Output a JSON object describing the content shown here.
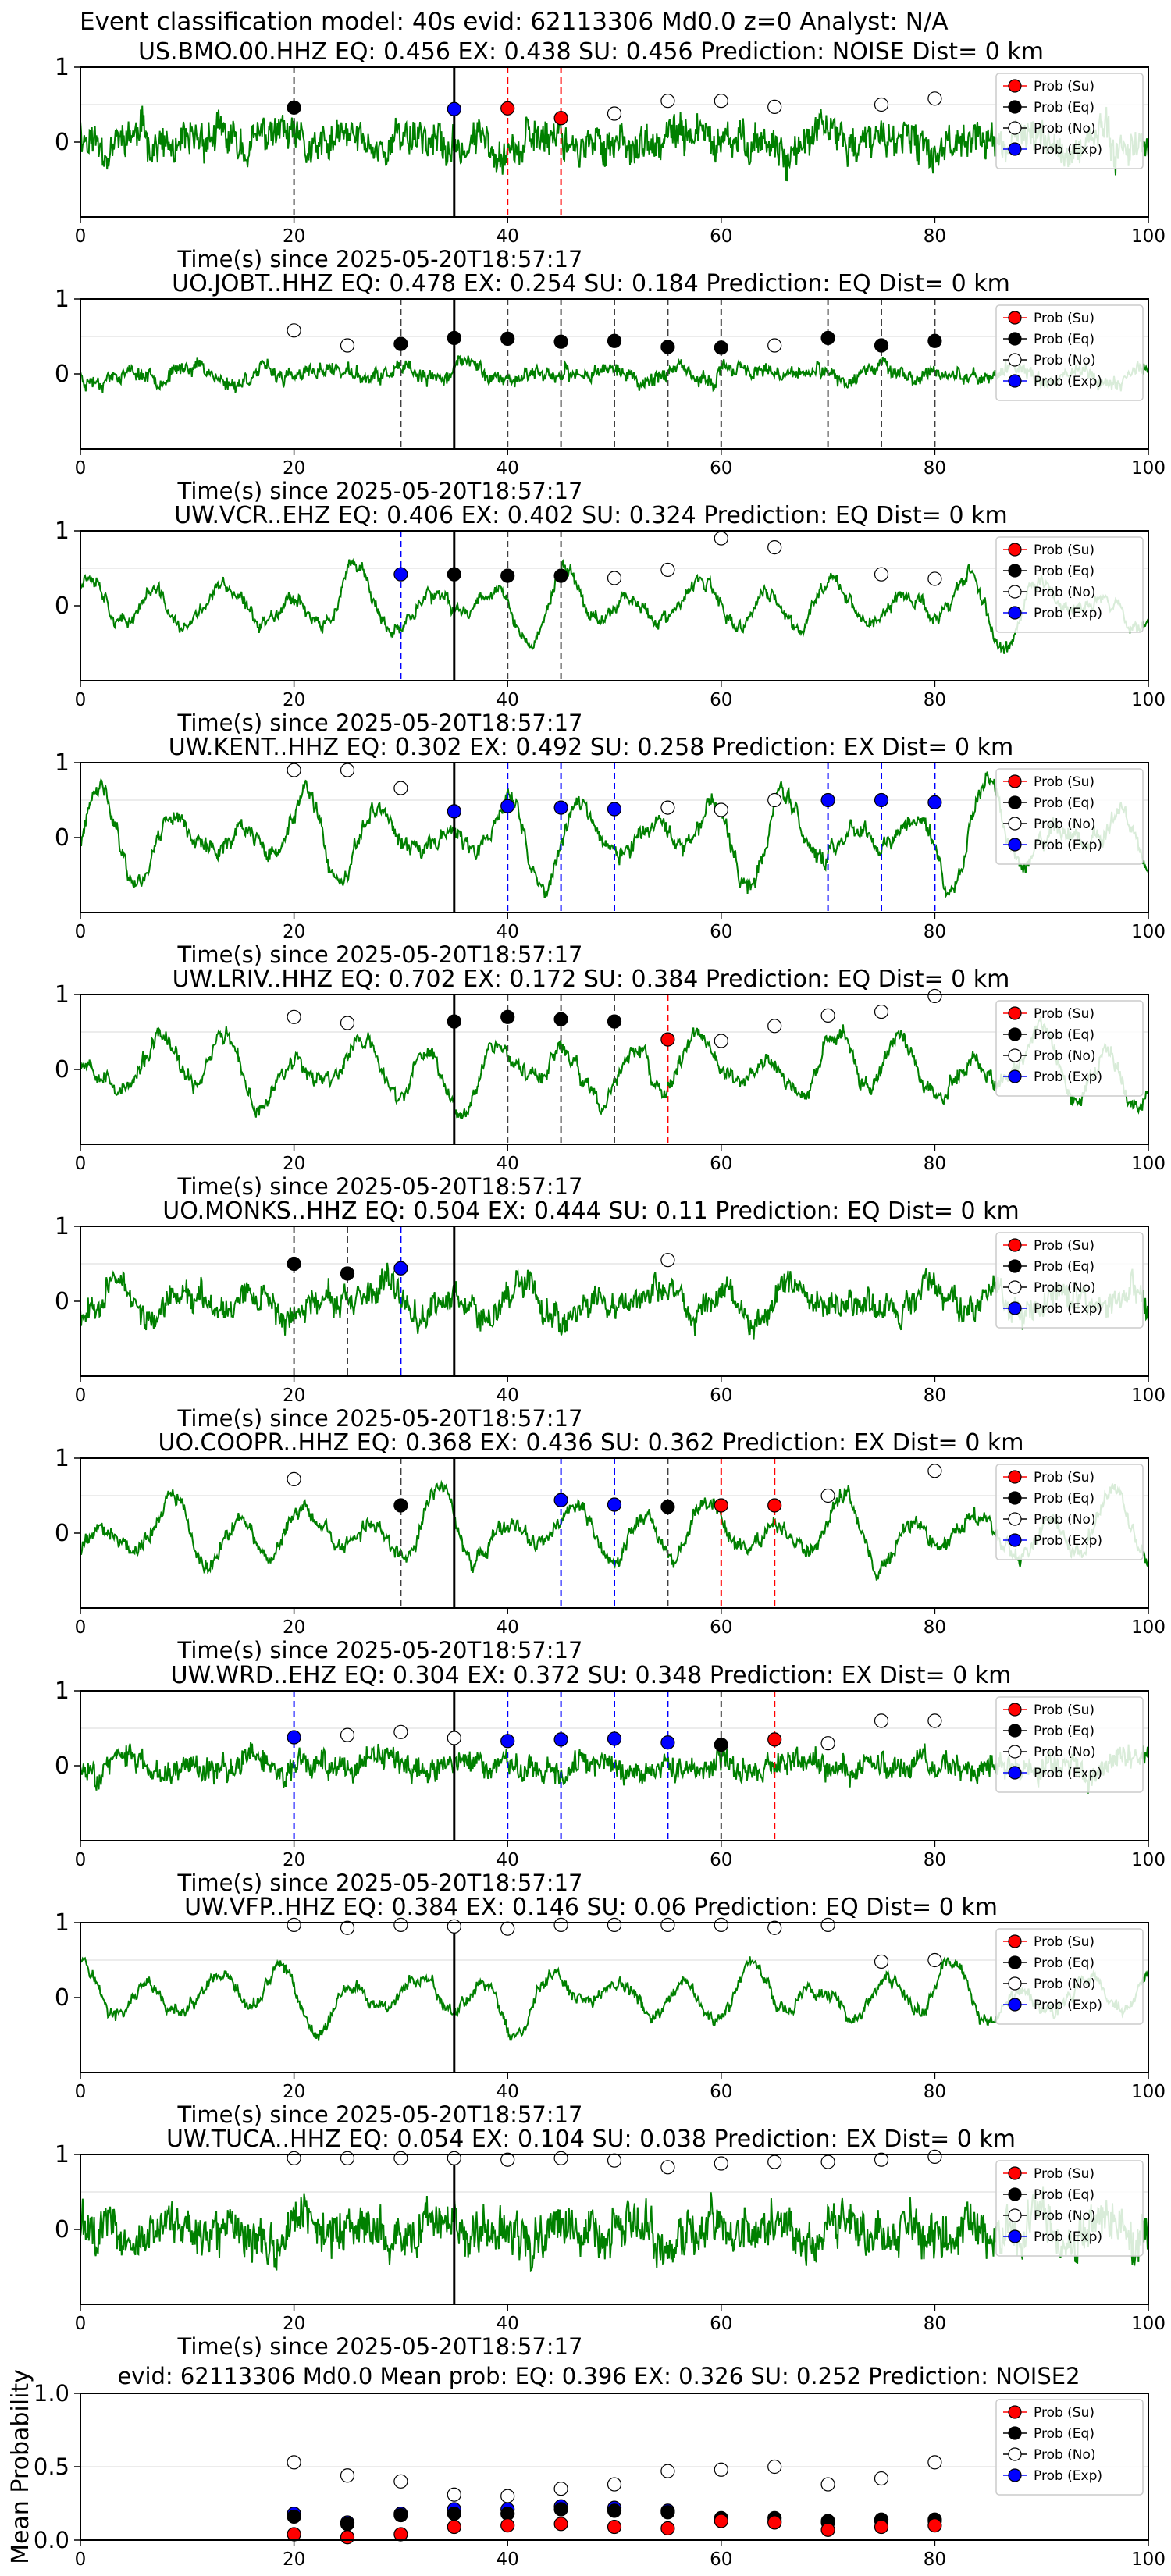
{
  "figure": {
    "suptitle": "Event classification model: 40s evid: 62113306 Md0.0 z=0 Analyst: N/A",
    "xlabel": "Time(s) since 2025-05-20T18:57:17",
    "legend": [
      "Prob (Su)",
      "Prob (Eq)",
      "Prob (No)",
      "Prob (Exp)"
    ],
    "colors": {
      "trace": "#008000",
      "su": "#ff0000",
      "eq": "#000000",
      "no": "#ffffff",
      "exp": "#0000ff",
      "onset": "#000000",
      "gridline": "#d8d8d8"
    }
  },
  "chart_data": [
    {
      "type": "line",
      "title": "US.BMO.00.HHZ   EQ: 0.456  EX: 0.438  SU: 0.456   Prediction: NOISE    Dist= 0 km",
      "style": "noisy",
      "amp": 0.42,
      "seed": 11,
      "onset": 35,
      "xlim": [
        0,
        100
      ],
      "ylim": [
        -1,
        1
      ],
      "xticks": [
        0,
        20,
        40,
        60,
        80,
        100
      ],
      "yticks": [
        0,
        1
      ],
      "points": [
        {
          "t": 20,
          "cls": "eq",
          "p": 0.46
        },
        {
          "t": 35,
          "cls": "exp",
          "p": 0.44
        },
        {
          "t": 40,
          "cls": "su",
          "p": 0.45
        },
        {
          "t": 45,
          "cls": "su",
          "p": 0.32
        },
        {
          "t": 50,
          "cls": "no",
          "p": 0.38
        },
        {
          "t": 55,
          "cls": "no",
          "p": 0.55
        },
        {
          "t": 60,
          "cls": "no",
          "p": 0.55
        },
        {
          "t": 65,
          "cls": "no",
          "p": 0.47
        },
        {
          "t": 75,
          "cls": "no",
          "p": 0.5
        },
        {
          "t": 80,
          "cls": "no",
          "p": 0.58
        }
      ]
    },
    {
      "type": "line",
      "title": "UO.JOBT..HHZ   EQ: 0.478  EX: 0.254  SU: 0.184   Prediction: EQ    Dist= 0 km",
      "style": "mixed",
      "amp": 0.3,
      "seed": 23,
      "onset": 35,
      "xlim": [
        0,
        100
      ],
      "ylim": [
        -1,
        1
      ],
      "xticks": [
        0,
        20,
        40,
        60,
        80,
        100
      ],
      "yticks": [
        0,
        1
      ],
      "points": [
        {
          "t": 20,
          "cls": "no",
          "p": 0.58
        },
        {
          "t": 25,
          "cls": "no",
          "p": 0.38
        },
        {
          "t": 30,
          "cls": "eq",
          "p": 0.4
        },
        {
          "t": 35,
          "cls": "eq",
          "p": 0.48
        },
        {
          "t": 40,
          "cls": "eq",
          "p": 0.47
        },
        {
          "t": 45,
          "cls": "eq",
          "p": 0.43
        },
        {
          "t": 50,
          "cls": "eq",
          "p": 0.44
        },
        {
          "t": 55,
          "cls": "eq",
          "p": 0.36
        },
        {
          "t": 60,
          "cls": "eq",
          "p": 0.35
        },
        {
          "t": 65,
          "cls": "no",
          "p": 0.38
        },
        {
          "t": 70,
          "cls": "eq",
          "p": 0.48
        },
        {
          "t": 75,
          "cls": "eq",
          "p": 0.38
        },
        {
          "t": 80,
          "cls": "eq",
          "p": 0.44
        }
      ]
    },
    {
      "type": "line",
      "title": "UW.VCR..EHZ   EQ: 0.406  EX: 0.402  SU: 0.324   Prediction: EQ    Dist= 0 km",
      "style": "wave",
      "amp": 0.6,
      "seed": 37,
      "onset": 35,
      "xlim": [
        0,
        100
      ],
      "ylim": [
        -1,
        1
      ],
      "xticks": [
        0,
        20,
        40,
        60,
        80,
        100
      ],
      "yticks": [
        0,
        1
      ],
      "points": [
        {
          "t": 30,
          "cls": "exp",
          "p": 0.42
        },
        {
          "t": 35,
          "cls": "eq",
          "p": 0.42
        },
        {
          "t": 40,
          "cls": "eq",
          "p": 0.4
        },
        {
          "t": 45,
          "cls": "eq",
          "p": 0.4
        },
        {
          "t": 50,
          "cls": "no",
          "p": 0.37
        },
        {
          "t": 55,
          "cls": "no",
          "p": 0.48
        },
        {
          "t": 60,
          "cls": "no",
          "p": 0.9
        },
        {
          "t": 65,
          "cls": "no",
          "p": 0.78
        },
        {
          "t": 75,
          "cls": "no",
          "p": 0.42
        },
        {
          "t": 80,
          "cls": "no",
          "p": 0.36
        }
      ]
    },
    {
      "type": "line",
      "title": "UW.KENT..HHZ   EQ: 0.302  EX: 0.492  SU: 0.258   Prediction: EX    Dist= 0 km",
      "style": "wave",
      "amp": 0.75,
      "seed": 41,
      "onset": 35,
      "xlim": [
        0,
        100
      ],
      "ylim": [
        -1,
        1
      ],
      "xticks": [
        0,
        20,
        40,
        60,
        80,
        100
      ],
      "yticks": [
        0,
        1
      ],
      "points": [
        {
          "t": 20,
          "cls": "no",
          "p": 0.9
        },
        {
          "t": 25,
          "cls": "no",
          "p": 0.9
        },
        {
          "t": 30,
          "cls": "no",
          "p": 0.66
        },
        {
          "t": 35,
          "cls": "exp",
          "p": 0.35
        },
        {
          "t": 40,
          "cls": "exp",
          "p": 0.42
        },
        {
          "t": 45,
          "cls": "exp",
          "p": 0.4
        },
        {
          "t": 50,
          "cls": "exp",
          "p": 0.38
        },
        {
          "t": 55,
          "cls": "no",
          "p": 0.4
        },
        {
          "t": 60,
          "cls": "no",
          "p": 0.37
        },
        {
          "t": 65,
          "cls": "no",
          "p": 0.5
        },
        {
          "t": 70,
          "cls": "exp",
          "p": 0.5
        },
        {
          "t": 75,
          "cls": "exp",
          "p": 0.5
        },
        {
          "t": 80,
          "cls": "exp",
          "p": 0.47
        }
      ]
    },
    {
      "type": "line",
      "title": "UW.LRIV..HHZ   EQ: 0.702  EX: 0.172  SU: 0.384   Prediction: EQ    Dist= 0 km",
      "style": "wave",
      "amp": 0.7,
      "seed": 53,
      "onset": 35,
      "xlim": [
        0,
        100
      ],
      "ylim": [
        -1,
        1
      ],
      "xticks": [
        0,
        20,
        40,
        60,
        80,
        100
      ],
      "yticks": [
        0,
        1
      ],
      "points": [
        {
          "t": 20,
          "cls": "no",
          "p": 0.7
        },
        {
          "t": 25,
          "cls": "no",
          "p": 0.62
        },
        {
          "t": 35,
          "cls": "eq",
          "p": 0.64
        },
        {
          "t": 40,
          "cls": "eq",
          "p": 0.7
        },
        {
          "t": 45,
          "cls": "eq",
          "p": 0.67
        },
        {
          "t": 50,
          "cls": "eq",
          "p": 0.64
        },
        {
          "t": 55,
          "cls": "su",
          "p": 0.4
        },
        {
          "t": 60,
          "cls": "no",
          "p": 0.38
        },
        {
          "t": 65,
          "cls": "no",
          "p": 0.58
        },
        {
          "t": 70,
          "cls": "no",
          "p": 0.72
        },
        {
          "t": 75,
          "cls": "no",
          "p": 0.77
        },
        {
          "t": 80,
          "cls": "no",
          "p": 0.98
        }
      ]
    },
    {
      "type": "line",
      "title": "UO.MONKS..HHZ   EQ: 0.504  EX: 0.444  SU: 0.11   Prediction: EQ    Dist= 0 km",
      "style": "mixed",
      "amp": 0.55,
      "seed": 67,
      "onset": 35,
      "xlim": [
        0,
        100
      ],
      "ylim": [
        -1,
        1
      ],
      "xticks": [
        0,
        20,
        40,
        60,
        80,
        100
      ],
      "yticks": [
        0,
        1
      ],
      "points": [
        {
          "t": 20,
          "cls": "eq",
          "p": 0.5
        },
        {
          "t": 25,
          "cls": "eq",
          "p": 0.37
        },
        {
          "t": 30,
          "cls": "exp",
          "p": 0.44
        },
        {
          "t": 55,
          "cls": "no",
          "p": 0.55
        }
      ]
    },
    {
      "type": "line",
      "title": "UO.COOPR..HHZ   EQ: 0.368  EX: 0.436  SU: 0.362   Prediction: EX    Dist= 0 km",
      "style": "wave",
      "amp": 0.65,
      "seed": 79,
      "onset": 35,
      "xlim": [
        0,
        100
      ],
      "ylim": [
        -1,
        1
      ],
      "xticks": [
        0,
        20,
        40,
        60,
        80,
        100
      ],
      "yticks": [
        0,
        1
      ],
      "points": [
        {
          "t": 20,
          "cls": "no",
          "p": 0.72
        },
        {
          "t": 30,
          "cls": "eq",
          "p": 0.37
        },
        {
          "t": 45,
          "cls": "exp",
          "p": 0.44
        },
        {
          "t": 50,
          "cls": "exp",
          "p": 0.38
        },
        {
          "t": 55,
          "cls": "eq",
          "p": 0.35
        },
        {
          "t": 60,
          "cls": "su",
          "p": 0.37
        },
        {
          "t": 65,
          "cls": "su",
          "p": 0.37
        },
        {
          "t": 70,
          "cls": "no",
          "p": 0.5
        },
        {
          "t": 80,
          "cls": "no",
          "p": 0.83
        }
      ]
    },
    {
      "type": "line",
      "title": "UW.WRD..EHZ   EQ: 0.304  EX: 0.372  SU: 0.348   Prediction: EX    Dist= 0 km",
      "style": "noisy",
      "amp": 0.28,
      "seed": 83,
      "onset": 35,
      "xlim": [
        0,
        100
      ],
      "ylim": [
        -1,
        1
      ],
      "xticks": [
        0,
        20,
        40,
        60,
        80,
        100
      ],
      "yticks": [
        0,
        1
      ],
      "points": [
        {
          "t": 20,
          "cls": "exp",
          "p": 0.38
        },
        {
          "t": 25,
          "cls": "no",
          "p": 0.41
        },
        {
          "t": 30,
          "cls": "no",
          "p": 0.45
        },
        {
          "t": 35,
          "cls": "no",
          "p": 0.37
        },
        {
          "t": 40,
          "cls": "exp",
          "p": 0.33
        },
        {
          "t": 45,
          "cls": "exp",
          "p": 0.35
        },
        {
          "t": 50,
          "cls": "exp",
          "p": 0.36
        },
        {
          "t": 55,
          "cls": "exp",
          "p": 0.31
        },
        {
          "t": 60,
          "cls": "eq",
          "p": 0.28
        },
        {
          "t": 65,
          "cls": "su",
          "p": 0.35
        },
        {
          "t": 70,
          "cls": "no",
          "p": 0.3
        },
        {
          "t": 75,
          "cls": "no",
          "p": 0.6
        },
        {
          "t": 80,
          "cls": "no",
          "p": 0.6
        }
      ]
    },
    {
      "type": "line",
      "title": "UW.VFP..HHZ   EQ: 0.384  EX: 0.146  SU: 0.06   Prediction: EQ    Dist= 0 km",
      "style": "wave",
      "amp": 0.55,
      "seed": 97,
      "onset": 35,
      "xlim": [
        0,
        100
      ],
      "ylim": [
        -1,
        1
      ],
      "xticks": [
        0,
        20,
        40,
        60,
        80,
        100
      ],
      "yticks": [
        0,
        1
      ],
      "points": [
        {
          "t": 20,
          "cls": "no",
          "p": 0.97
        },
        {
          "t": 25,
          "cls": "no",
          "p": 0.93
        },
        {
          "t": 30,
          "cls": "no",
          "p": 0.97
        },
        {
          "t": 35,
          "cls": "no",
          "p": 0.95
        },
        {
          "t": 40,
          "cls": "no",
          "p": 0.92
        },
        {
          "t": 45,
          "cls": "no",
          "p": 0.97
        },
        {
          "t": 50,
          "cls": "no",
          "p": 0.97
        },
        {
          "t": 55,
          "cls": "no",
          "p": 0.97
        },
        {
          "t": 60,
          "cls": "no",
          "p": 0.97
        },
        {
          "t": 65,
          "cls": "no",
          "p": 0.93
        },
        {
          "t": 70,
          "cls": "no",
          "p": 0.97
        },
        {
          "t": 75,
          "cls": "no",
          "p": 0.48
        },
        {
          "t": 80,
          "cls": "no",
          "p": 0.5
        }
      ]
    },
    {
      "type": "line",
      "title": "UW.TUCA..HHZ   EQ: 0.054  EX: 0.104  SU: 0.038   Prediction: EX    Dist= 0 km",
      "style": "noisy",
      "amp": 0.5,
      "seed": 101,
      "onset": 35,
      "xlim": [
        0,
        100
      ],
      "ylim": [
        -1,
        1
      ],
      "xticks": [
        0,
        20,
        40,
        60,
        80,
        100
      ],
      "yticks": [
        0,
        1
      ],
      "points": [
        {
          "t": 20,
          "cls": "no",
          "p": 0.95
        },
        {
          "t": 25,
          "cls": "no",
          "p": 0.95
        },
        {
          "t": 30,
          "cls": "no",
          "p": 0.95
        },
        {
          "t": 35,
          "cls": "no",
          "p": 0.95
        },
        {
          "t": 40,
          "cls": "no",
          "p": 0.93
        },
        {
          "t": 45,
          "cls": "no",
          "p": 0.95
        },
        {
          "t": 50,
          "cls": "no",
          "p": 0.92
        },
        {
          "t": 55,
          "cls": "no",
          "p": 0.83
        },
        {
          "t": 60,
          "cls": "no",
          "p": 0.88
        },
        {
          "t": 65,
          "cls": "no",
          "p": 0.9
        },
        {
          "t": 70,
          "cls": "no",
          "p": 0.9
        },
        {
          "t": 75,
          "cls": "no",
          "p": 0.93
        },
        {
          "t": 80,
          "cls": "no",
          "p": 0.97
        }
      ]
    },
    {
      "type": "scatter",
      "title": "evid: 62113306  Md0.0   Mean prob:   EQ: 0.396  EX: 0.326  SU: 0.252   Prediction: NOISE2",
      "ylabel": "Mean Probability",
      "xlim": [
        0,
        100
      ],
      "ylim": [
        0,
        1
      ],
      "xticks": [
        0,
        20,
        40,
        60,
        80,
        100
      ],
      "yticks": [
        0.0,
        0.5,
        1.0
      ],
      "ytick_labels": [
        "0.0",
        "0.5",
        "1.0"
      ],
      "x": [
        20,
        25,
        30,
        35,
        40,
        45,
        50,
        55,
        60,
        65,
        70,
        75,
        80
      ],
      "series": [
        {
          "name": "Prob (No)",
          "cls": "no",
          "values": [
            0.53,
            0.44,
            0.4,
            0.31,
            0.3,
            0.35,
            0.38,
            0.47,
            0.48,
            0.5,
            0.38,
            0.42,
            0.53
          ]
        },
        {
          "name": "Prob (Exp)",
          "cls": "exp",
          "values": [
            0.18,
            0.12,
            0.18,
            0.21,
            0.21,
            0.23,
            0.22,
            0.2,
            0.14,
            0.13,
            0.12,
            0.13,
            0.13
          ]
        },
        {
          "name": "Prob (Eq)",
          "cls": "eq",
          "values": [
            0.16,
            0.11,
            0.17,
            0.18,
            0.18,
            0.21,
            0.2,
            0.19,
            0.15,
            0.15,
            0.13,
            0.14,
            0.14
          ]
        },
        {
          "name": "Prob (Su)",
          "cls": "su",
          "values": [
            0.04,
            0.02,
            0.04,
            0.09,
            0.1,
            0.11,
            0.09,
            0.08,
            0.13,
            0.12,
            0.07,
            0.09,
            0.1
          ]
        }
      ]
    }
  ]
}
